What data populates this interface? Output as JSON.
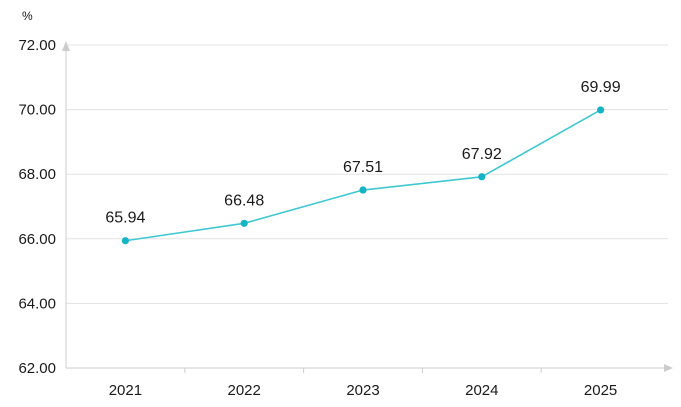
{
  "chart_data": {
    "type": "line",
    "title": "",
    "xlabel": "",
    "ylabel": "%",
    "categories": [
      "2021",
      "2022",
      "2023",
      "2024",
      "2025"
    ],
    "series": [
      {
        "values": [
          65.94,
          66.48,
          67.51,
          67.92,
          69.99
        ],
        "data_labels": [
          "65.94",
          "66.48",
          "67.51",
          "67.92",
          "69.99"
        ]
      }
    ],
    "ylim": [
      62,
      72
    ],
    "yticks": [
      62,
      64,
      66,
      68,
      70,
      72
    ],
    "ytick_labels": [
      "62.00",
      "64.00",
      "66.00",
      "68.00",
      "70.00",
      "72.00"
    ],
    "grid": true,
    "legend": "none",
    "colors": {
      "line": "#3ec8d2",
      "marker": "#14b4c4",
      "grid": "#e3e3e3",
      "axis": "#cccccc",
      "text": "#1a1a1a"
    }
  }
}
